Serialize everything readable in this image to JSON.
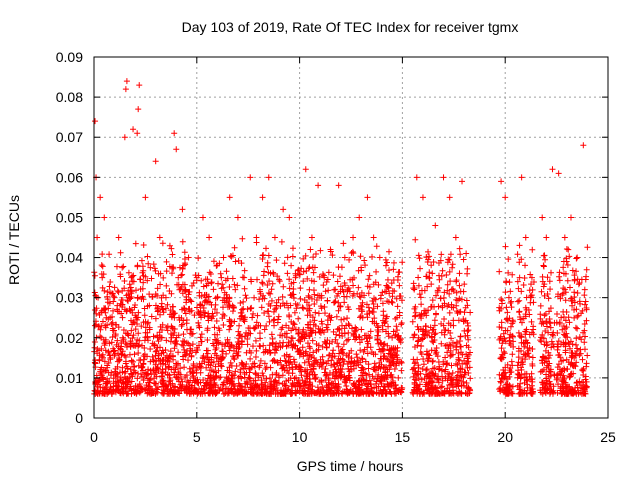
{
  "chart_data": {
    "type": "scatter",
    "title": "Day 103 of 2019, Rate Of TEC Index for receiver tgmx",
    "xlabel": "GPS time / hours",
    "ylabel": "ROTI / TECUs",
    "xlim": [
      0,
      25
    ],
    "ylim": [
      0,
      0.09
    ],
    "x_ticks": [
      "0",
      "5",
      "10",
      "15",
      "20",
      "25"
    ],
    "y_ticks": [
      "0",
      "0.01",
      "0.02",
      "0.03",
      "0.04",
      "0.05",
      "0.06",
      "0.07",
      "0.08",
      "0.09"
    ],
    "grid": true,
    "marker": "+",
    "color": "#ff0000",
    "series": [
      {
        "name": "",
        "x": [
          0.05,
          0.1,
          0.15,
          0.2,
          0.3,
          0.35,
          0.4,
          0.45,
          0.5,
          0.6,
          0.8,
          1.0,
          1.2,
          1.4,
          1.5,
          1.55,
          1.6,
          1.9,
          2.1,
          2.15,
          2.2,
          2.5,
          2.6,
          3.0,
          3.2,
          3.5,
          3.9,
          4.0,
          4.3,
          4.6,
          5.0,
          5.3,
          5.6,
          6.0,
          6.3,
          6.6,
          7.0,
          7.3,
          7.6,
          7.9,
          8.2,
          8.5,
          8.8,
          9.2,
          9.5,
          9.8,
          10.3,
          10.6,
          10.9,
          11.2,
          11.5,
          11.9,
          12.2,
          12.6,
          12.9,
          13.3,
          13.6,
          13.9,
          14.2,
          14.5,
          14.8,
          15.7,
          16.0,
          16.3,
          16.6,
          17.0,
          17.3,
          17.6,
          17.9,
          18.1,
          19.8,
          20.0,
          20.2,
          20.8,
          21.0,
          21.3,
          21.8,
          22.0,
          22.3,
          22.6,
          22.9,
          23.2,
          23.5,
          23.8
        ],
        "y": [
          0.074,
          0.06,
          0.045,
          0.03,
          0.055,
          0.02,
          0.035,
          0.012,
          0.05,
          0.025,
          0.015,
          0.03,
          0.045,
          0.02,
          0.07,
          0.082,
          0.084,
          0.072,
          0.071,
          0.077,
          0.083,
          0.055,
          0.02,
          0.064,
          0.045,
          0.03,
          0.071,
          0.067,
          0.052,
          0.04,
          0.035,
          0.05,
          0.045,
          0.03,
          0.04,
          0.055,
          0.05,
          0.035,
          0.06,
          0.045,
          0.055,
          0.06,
          0.045,
          0.052,
          0.05,
          0.035,
          0.062,
          0.045,
          0.058,
          0.035,
          0.042,
          0.058,
          0.04,
          0.045,
          0.05,
          0.055,
          0.045,
          0.04,
          0.038,
          0.02,
          0.01,
          0.06,
          0.055,
          0.035,
          0.048,
          0.06,
          0.055,
          0.045,
          0.059,
          0.041,
          0.059,
          0.055,
          0.02,
          0.06,
          0.045,
          0.035,
          0.05,
          0.045,
          0.062,
          0.061,
          0.045,
          0.05,
          0.04,
          0.068
        ]
      }
    ]
  }
}
